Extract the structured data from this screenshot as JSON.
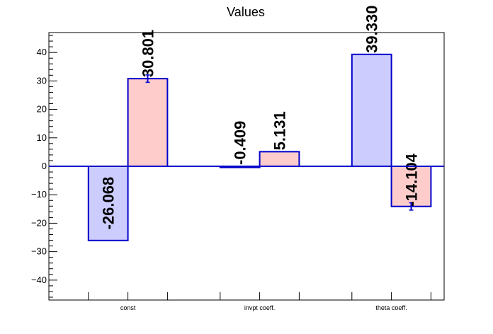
{
  "chart_data": {
    "type": "bar",
    "title": "Values",
    "categories": [
      "const",
      "invpt coeff.",
      "theta coeff."
    ],
    "ylim": [
      -47,
      47
    ],
    "yticks": [
      -40,
      -30,
      -20,
      -10,
      0,
      10,
      20,
      30,
      40
    ],
    "ytick_labels": [
      "−40",
      "−30",
      "−20",
      "−10",
      "0",
      "10",
      "20",
      "30",
      "40"
    ],
    "grid": false,
    "legend": "none",
    "series": [
      {
        "values": [
          -26.068,
          -0.409,
          39.33
        ],
        "labels": [
          "-26.068",
          "-0.409",
          "39.330"
        ],
        "errors": [
          0,
          0,
          0
        ],
        "fill": "#ccccff",
        "stroke": "#0000cc"
      },
      {
        "values": [
          30.801,
          5.131,
          -14.104
        ],
        "labels": [
          "30.801",
          "5.131",
          "-14.104"
        ],
        "errors": [
          1.3,
          0,
          1.3
        ],
        "fill": "#ffcccc",
        "stroke": "#0000cc"
      }
    ]
  }
}
